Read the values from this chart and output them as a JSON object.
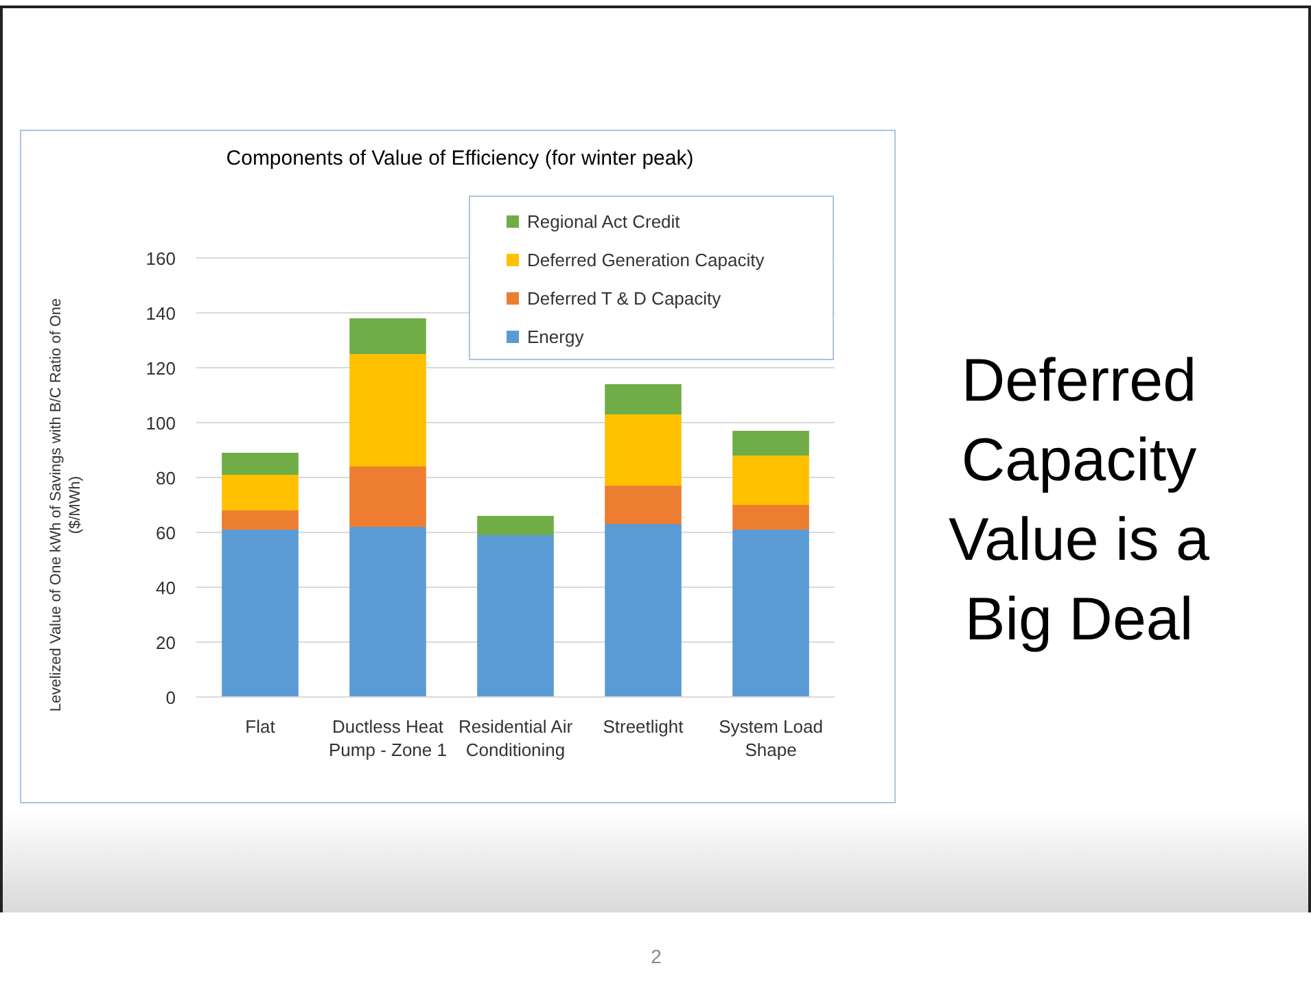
{
  "chart_data": {
    "type": "bar",
    "title": "Components of Value of Efficiency (for winter peak)",
    "ylabel": "Levelized Value of One kWh of Savings with B/C Ratio of One ($/MWh)",
    "categories": [
      "Flat",
      "Ductless Heat Pump - Zone 1",
      "Residential Air Conditioning",
      "Streetlight",
      "System Load Shape"
    ],
    "series": [
      {
        "name": "Energy",
        "color": "#5b9bd5",
        "values": [
          61,
          62,
          59,
          63,
          61
        ]
      },
      {
        "name": "Deferred T & D Capacity",
        "color": "#ed7d31",
        "values": [
          7,
          22,
          0,
          14,
          9
        ]
      },
      {
        "name": "Deferred Generation Capacity",
        "color": "#ffc000",
        "values": [
          13,
          41,
          0,
          26,
          18
        ]
      },
      {
        "name": "Regional Act Credit",
        "color": "#70ad47",
        "values": [
          8,
          13,
          7,
          11,
          9
        ]
      }
    ],
    "stacked": true,
    "ylim": [
      0,
      160
    ],
    "yticks": [
      0,
      20,
      40,
      60,
      80,
      100,
      120,
      140,
      160
    ],
    "grid": "y",
    "legend": "top right",
    "annotations": [
      "Deferred Capacity Value is a Big Deal",
      "2"
    ]
  }
}
